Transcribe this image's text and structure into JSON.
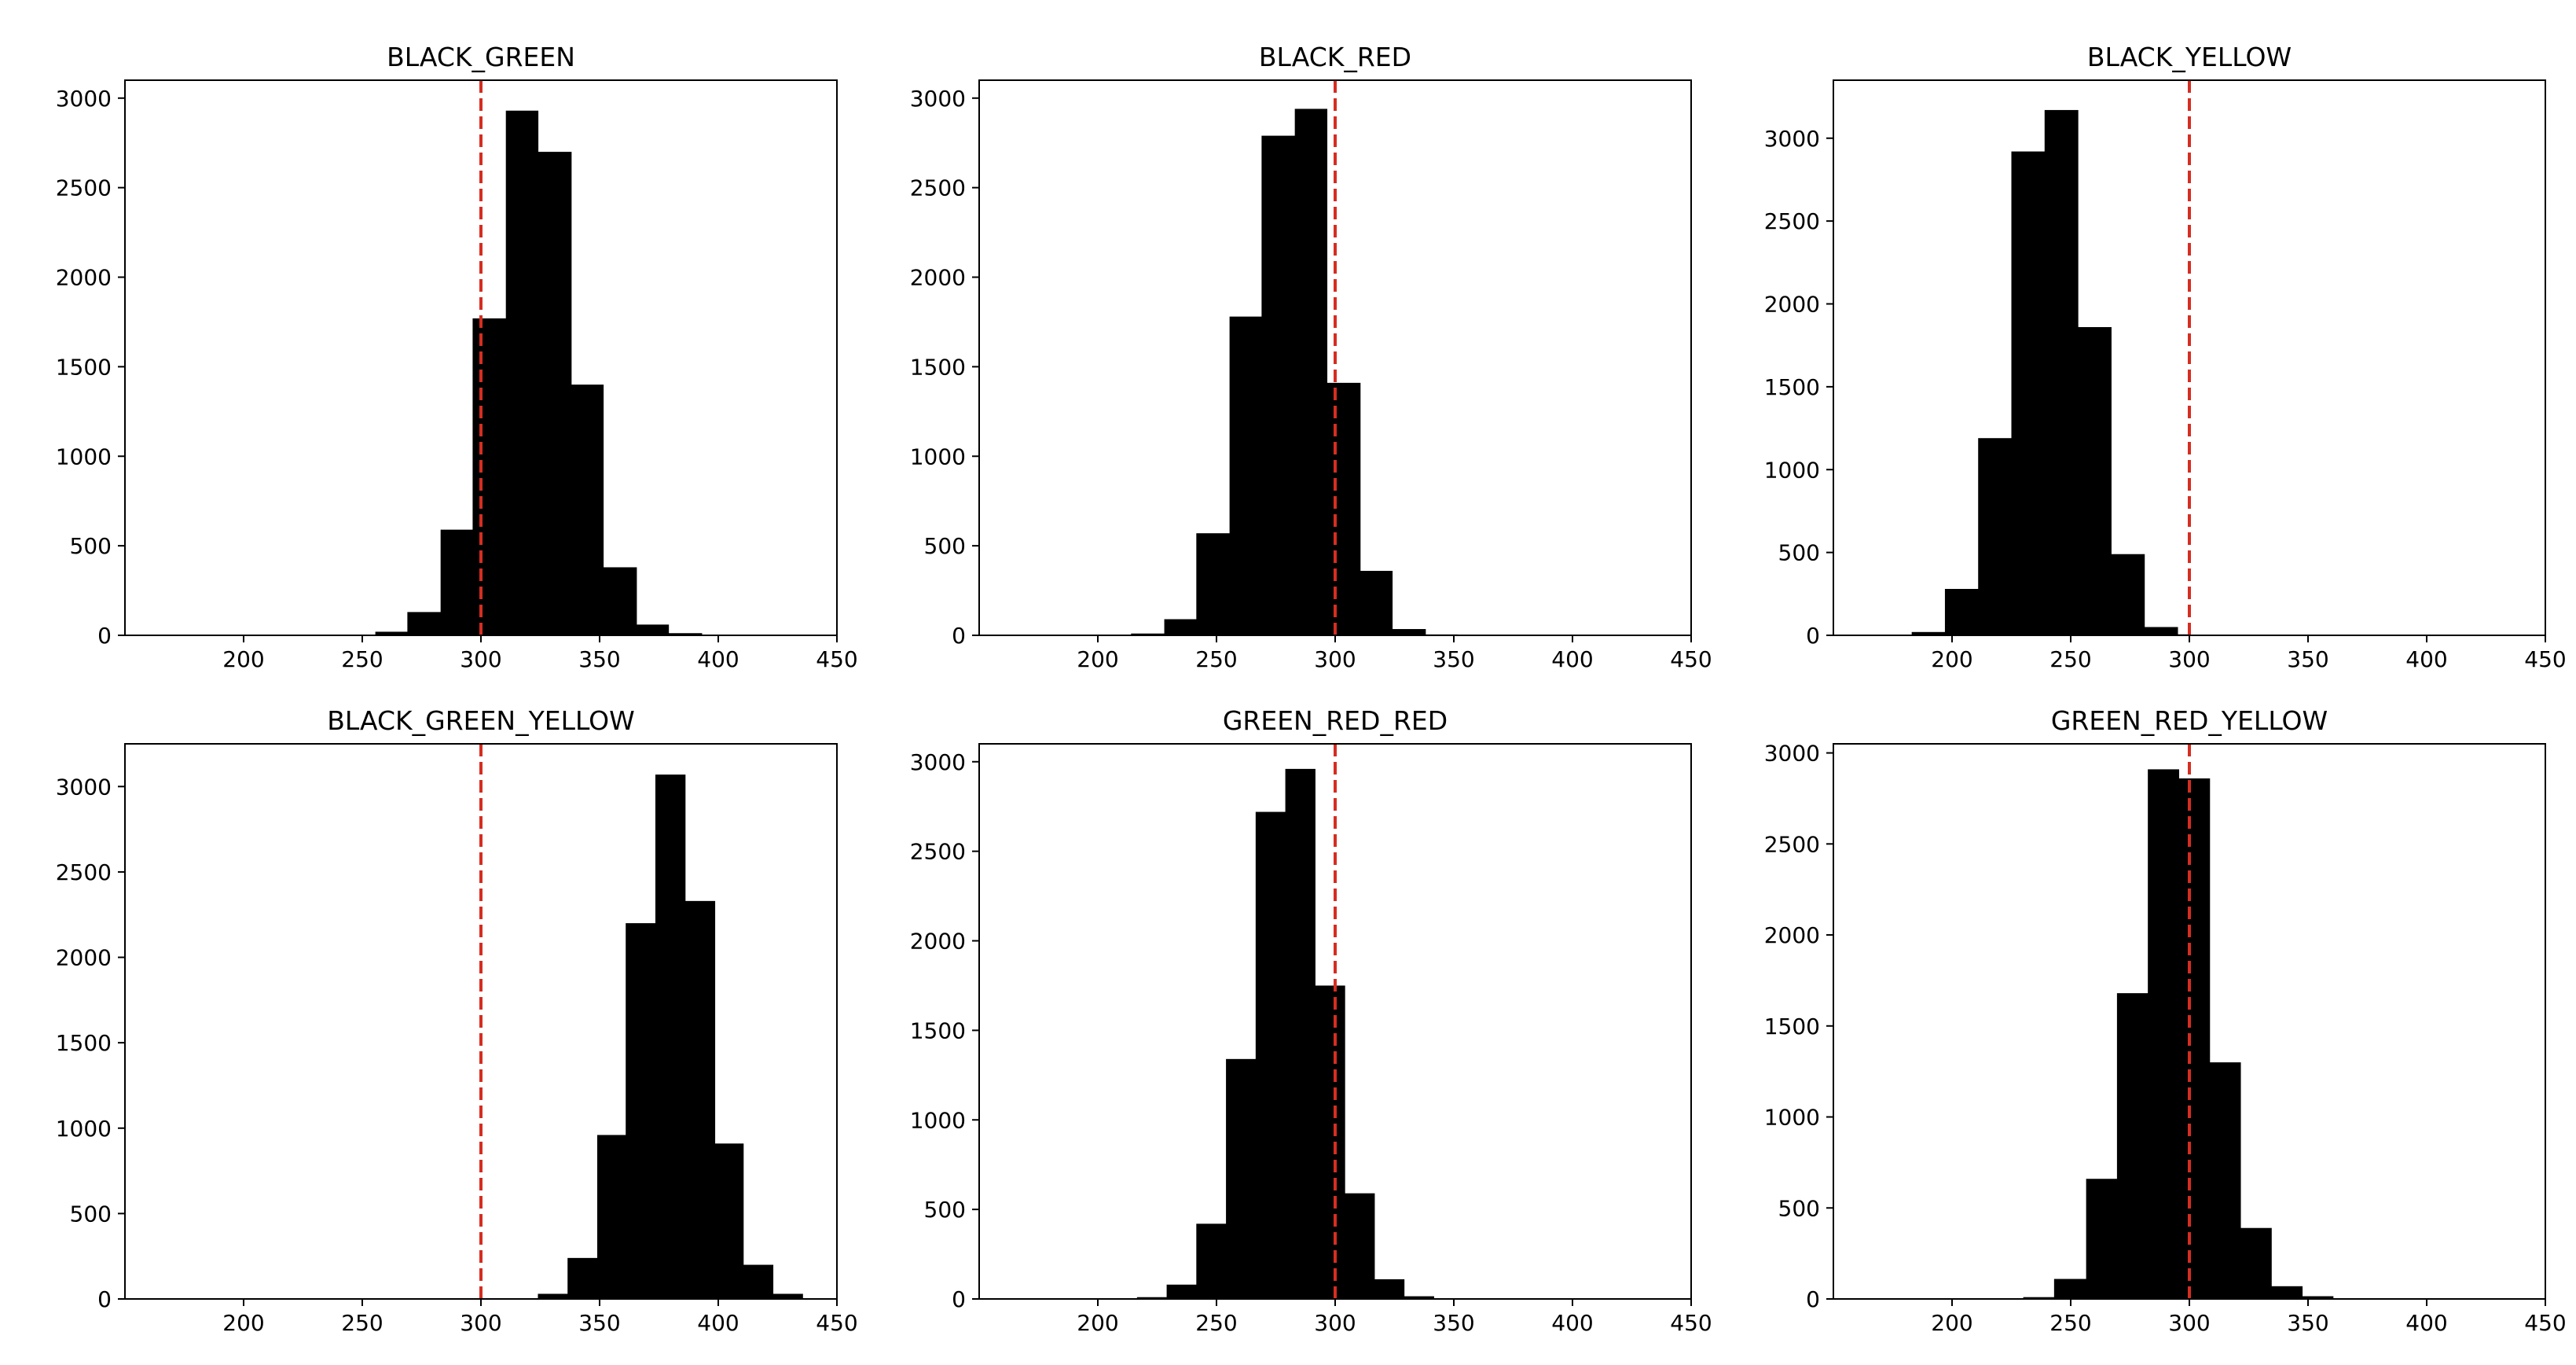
{
  "chart_data": [
    {
      "type": "bar",
      "title": "BLACK_GREEN",
      "xlim": [
        150,
        450
      ],
      "ylim": [
        0,
        3100
      ],
      "xticks": [
        200,
        250,
        300,
        350,
        400,
        450
      ],
      "yticks": [
        0,
        500,
        1000,
        1500,
        2000,
        2500,
        3000
      ],
      "threshold": 300,
      "bins": [
        {
          "x0": 241.5,
          "x1": 255.5,
          "value": 2
        },
        {
          "x0": 255.5,
          "x1": 269.0,
          "value": 20
        },
        {
          "x0": 269.0,
          "x1": 283.0,
          "value": 130
        },
        {
          "x0": 283.0,
          "x1": 296.5,
          "value": 590
        },
        {
          "x0": 296.5,
          "x1": 310.5,
          "value": 1770
        },
        {
          "x0": 310.5,
          "x1": 324.0,
          "value": 2930
        },
        {
          "x0": 324.0,
          "x1": 338.0,
          "value": 2700
        },
        {
          "x0": 338.0,
          "x1": 351.5,
          "value": 1400
        },
        {
          "x0": 351.5,
          "x1": 365.5,
          "value": 380
        },
        {
          "x0": 365.5,
          "x1": 379.0,
          "value": 60
        },
        {
          "x0": 379.0,
          "x1": 393.0,
          "value": 12
        },
        {
          "x0": 393.0,
          "x1": 406.5,
          "value": 2
        }
      ]
    },
    {
      "type": "bar",
      "title": "BLACK_RED",
      "xlim": [
        150,
        450
      ],
      "ylim": [
        0,
        3100
      ],
      "xticks": [
        200,
        250,
        300,
        350,
        400,
        450
      ],
      "yticks": [
        0,
        500,
        1000,
        1500,
        2000,
        2500,
        3000
      ],
      "threshold": 300,
      "bins": [
        {
          "x0": 214.0,
          "x1": 228.0,
          "value": 10
        },
        {
          "x0": 228.0,
          "x1": 241.5,
          "value": 90
        },
        {
          "x0": 241.5,
          "x1": 255.5,
          "value": 570
        },
        {
          "x0": 255.5,
          "x1": 269.0,
          "value": 1780
        },
        {
          "x0": 269.0,
          "x1": 283.0,
          "value": 2790
        },
        {
          "x0": 283.0,
          "x1": 296.5,
          "value": 2940
        },
        {
          "x0": 296.5,
          "x1": 310.5,
          "value": 1410
        },
        {
          "x0": 310.5,
          "x1": 324.0,
          "value": 360
        },
        {
          "x0": 324.0,
          "x1": 338.0,
          "value": 35
        },
        {
          "x0": 338.0,
          "x1": 351.5,
          "value": 5
        }
      ]
    },
    {
      "type": "bar",
      "title": "BLACK_YELLOW",
      "xlim": [
        150,
        450
      ],
      "ylim": [
        0,
        3350
      ],
      "xticks": [
        200,
        250,
        300,
        350,
        400,
        450
      ],
      "yticks": [
        0,
        500,
        1000,
        1500,
        2000,
        2500,
        3000
      ],
      "threshold": 300,
      "bins": [
        {
          "x0": 183.0,
          "x1": 197.0,
          "value": 20
        },
        {
          "x0": 197.0,
          "x1": 211.0,
          "value": 280
        },
        {
          "x0": 211.0,
          "x1": 225.0,
          "value": 1190
        },
        {
          "x0": 225.0,
          "x1": 239.0,
          "value": 2920
        },
        {
          "x0": 239.0,
          "x1": 253.0,
          "value": 3170
        },
        {
          "x0": 253.0,
          "x1": 267.0,
          "value": 1860
        },
        {
          "x0": 267.0,
          "x1": 281.0,
          "value": 490
        },
        {
          "x0": 281.0,
          "x1": 295.0,
          "value": 50
        },
        {
          "x0": 295.0,
          "x1": 300.0,
          "value": 6
        }
      ]
    },
    {
      "type": "bar",
      "title": "BLACK_GREEN_YELLOW",
      "xlim": [
        150,
        450
      ],
      "ylim": [
        0,
        3250
      ],
      "xticks": [
        200,
        250,
        300,
        350,
        400,
        450
      ],
      "yticks": [
        0,
        500,
        1000,
        1500,
        2000,
        2500,
        3000
      ],
      "threshold": 300,
      "bins": [
        {
          "x0": 324.0,
          "x1": 336.5,
          "value": 30
        },
        {
          "x0": 336.5,
          "x1": 349.0,
          "value": 240
        },
        {
          "x0": 349.0,
          "x1": 361.0,
          "value": 960
        },
        {
          "x0": 361.0,
          "x1": 373.5,
          "value": 2200
        },
        {
          "x0": 373.5,
          "x1": 386.0,
          "value": 3070
        },
        {
          "x0": 386.0,
          "x1": 398.5,
          "value": 2330
        },
        {
          "x0": 398.5,
          "x1": 410.5,
          "value": 910
        },
        {
          "x0": 410.5,
          "x1": 423.0,
          "value": 200
        },
        {
          "x0": 423.0,
          "x1": 435.5,
          "value": 30
        }
      ]
    },
    {
      "type": "bar",
      "title": "GREEN_RED_RED",
      "xlim": [
        150,
        450
      ],
      "ylim": [
        0,
        3100
      ],
      "xticks": [
        200,
        250,
        300,
        350,
        400,
        450
      ],
      "yticks": [
        0,
        500,
        1000,
        1500,
        2000,
        2500,
        3000
      ],
      "threshold": 300,
      "bins": [
        {
          "x0": 204.0,
          "x1": 216.5,
          "value": 3
        },
        {
          "x0": 216.5,
          "x1": 229.0,
          "value": 10
        },
        {
          "x0": 229.0,
          "x1": 241.5,
          "value": 80
        },
        {
          "x0": 241.5,
          "x1": 254.0,
          "value": 420
        },
        {
          "x0": 254.0,
          "x1": 266.5,
          "value": 1340
        },
        {
          "x0": 266.5,
          "x1": 279.0,
          "value": 2720
        },
        {
          "x0": 279.0,
          "x1": 291.5,
          "value": 2960
        },
        {
          "x0": 291.5,
          "x1": 304.0,
          "value": 1750
        },
        {
          "x0": 304.0,
          "x1": 316.5,
          "value": 590
        },
        {
          "x0": 316.5,
          "x1": 329.0,
          "value": 110
        },
        {
          "x0": 329.0,
          "x1": 341.5,
          "value": 15
        }
      ]
    },
    {
      "type": "bar",
      "title": "GREEN_RED_YELLOW",
      "xlim": [
        150,
        450
      ],
      "ylim": [
        0,
        3050
      ],
      "xticks": [
        200,
        250,
        300,
        350,
        400,
        450
      ],
      "yticks": [
        0,
        500,
        1000,
        1500,
        2000,
        2500,
        3000
      ],
      "threshold": 300,
      "bins": [
        {
          "x0": 230.0,
          "x1": 243.0,
          "value": 10
        },
        {
          "x0": 243.0,
          "x1": 256.5,
          "value": 110
        },
        {
          "x0": 256.5,
          "x1": 269.5,
          "value": 660
        },
        {
          "x0": 269.5,
          "x1": 282.5,
          "value": 1680
        },
        {
          "x0": 282.5,
          "x1": 295.5,
          "value": 2910
        },
        {
          "x0": 295.5,
          "x1": 308.5,
          "value": 2860
        },
        {
          "x0": 308.5,
          "x1": 321.5,
          "value": 1300
        },
        {
          "x0": 321.5,
          "x1": 334.5,
          "value": 390
        },
        {
          "x0": 334.5,
          "x1": 347.5,
          "value": 70
        },
        {
          "x0": 347.5,
          "x1": 360.5,
          "value": 15
        }
      ]
    }
  ],
  "colors": {
    "bar": "#000000",
    "threshold_line": "#d62d20",
    "axis": "#000000"
  }
}
